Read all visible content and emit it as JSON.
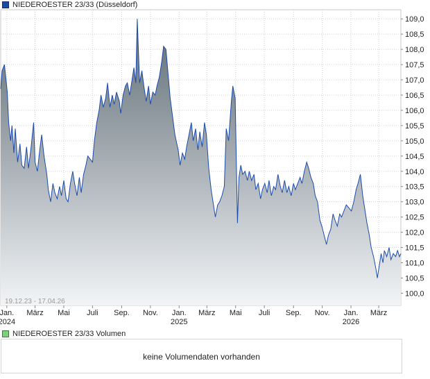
{
  "legend": {
    "price_label": "NIEDEROESTER 23/33 (Düsseldorf)",
    "volume_label": "NIEDEROESTER 23/33 Volumen"
  },
  "date_range": "19.12.23 - 17.04.26",
  "volume_message": "keine Volumendaten vorhanden",
  "colors": {
    "line": "#1a4bb0",
    "fill_top": "#5e6b74",
    "fill_bottom": "#f2f4f6",
    "grid": "#d0d0d0"
  },
  "chart_data": {
    "type": "area",
    "series": [
      {
        "name": "NIEDEROESTER 23/33 (Düsseldorf)"
      }
    ],
    "ylim": [
      99.6,
      109.3
    ],
    "yticks": [
      "100,0",
      "100,5",
      "101,0",
      "101,5",
      "102,0",
      "102,5",
      "103,0",
      "103,5",
      "104,0",
      "104,5",
      "105,0",
      "105,5",
      "106,0",
      "106,5",
      "107,0",
      "107,5",
      "108,0",
      "108,5",
      "109,0"
    ],
    "xlim": [
      "2023-12-19",
      "2026-04-17"
    ],
    "xticks": [
      {
        "date": "2024-01-01",
        "label": "Jan.",
        "sub": "2024"
      },
      {
        "date": "2024-03-01",
        "label": "März",
        "sub": ""
      },
      {
        "date": "2024-05-01",
        "label": "Mai",
        "sub": ""
      },
      {
        "date": "2024-07-01",
        "label": "Juli",
        "sub": ""
      },
      {
        "date": "2024-09-01",
        "label": "Sep.",
        "sub": ""
      },
      {
        "date": "2024-11-01",
        "label": "Nov.",
        "sub": ""
      },
      {
        "date": "2025-01-01",
        "label": "Jan.",
        "sub": "2025"
      },
      {
        "date": "2025-03-01",
        "label": "März",
        "sub": ""
      },
      {
        "date": "2025-05-01",
        "label": "Mai",
        "sub": ""
      },
      {
        "date": "2025-07-01",
        "label": "Juli",
        "sub": ""
      },
      {
        "date": "2025-09-01",
        "label": "Sep.",
        "sub": ""
      },
      {
        "date": "2025-11-01",
        "label": "Nov.",
        "sub": ""
      },
      {
        "date": "2026-01-01",
        "label": "Jan.",
        "sub": "2026"
      },
      {
        "date": "2026-03-01",
        "label": "März",
        "sub": ""
      }
    ],
    "points": [
      [
        "2023-12-19",
        106.7
      ],
      [
        "2023-12-22",
        107.3
      ],
      [
        "2023-12-27",
        107.5
      ],
      [
        "2024-01-02",
        106.6
      ],
      [
        "2024-01-05",
        105.6
      ],
      [
        "2024-01-09",
        105.0
      ],
      [
        "2024-01-12",
        105.5
      ],
      [
        "2024-01-16",
        104.6
      ],
      [
        "2024-01-19",
        105.4
      ],
      [
        "2024-01-24",
        104.3
      ],
      [
        "2024-01-29",
        104.9
      ],
      [
        "2024-02-02",
        104.2
      ],
      [
        "2024-02-07",
        104.1
      ],
      [
        "2024-02-12",
        104.8
      ],
      [
        "2024-02-16",
        104.1
      ],
      [
        "2024-02-21",
        104.7
      ],
      [
        "2024-02-27",
        105.6
      ],
      [
        "2024-03-01",
        104.3
      ],
      [
        "2024-03-06",
        104.0
      ],
      [
        "2024-03-11",
        104.7
      ],
      [
        "2024-03-15",
        105.2
      ],
      [
        "2024-03-20",
        104.5
      ],
      [
        "2024-03-26",
        103.9
      ],
      [
        "2024-03-29",
        103.4
      ],
      [
        "2024-04-03",
        103.0
      ],
      [
        "2024-04-08",
        103.6
      ],
      [
        "2024-04-12",
        103.3
      ],
      [
        "2024-04-17",
        103.1
      ],
      [
        "2024-04-22",
        103.5
      ],
      [
        "2024-04-26",
        103.2
      ],
      [
        "2024-05-01",
        103.7
      ],
      [
        "2024-05-06",
        103.1
      ],
      [
        "2024-05-10",
        103.0
      ],
      [
        "2024-05-15",
        103.6
      ],
      [
        "2024-05-20",
        104.0
      ],
      [
        "2024-05-24",
        103.6
      ],
      [
        "2024-05-29",
        103.2
      ],
      [
        "2024-06-03",
        103.8
      ],
      [
        "2024-06-07",
        103.3
      ],
      [
        "2024-06-12",
        103.9
      ],
      [
        "2024-06-17",
        104.2
      ],
      [
        "2024-06-21",
        104.5
      ],
      [
        "2024-06-26",
        104.4
      ],
      [
        "2024-07-01",
        104.3
      ],
      [
        "2024-07-05",
        105.0
      ],
      [
        "2024-07-10",
        105.6
      ],
      [
        "2024-07-15",
        106.0
      ],
      [
        "2024-07-19",
        106.5
      ],
      [
        "2024-07-24",
        106.1
      ],
      [
        "2024-07-29",
        106.4
      ],
      [
        "2024-08-02",
        106.9
      ],
      [
        "2024-08-07",
        106.1
      ],
      [
        "2024-08-12",
        106.5
      ],
      [
        "2024-08-16",
        106.2
      ],
      [
        "2024-08-21",
        106.6
      ],
      [
        "2024-08-27",
        106.3
      ],
      [
        "2024-08-30",
        105.9
      ],
      [
        "2024-09-04",
        106.5
      ],
      [
        "2024-09-09",
        106.8
      ],
      [
        "2024-09-13",
        106.9
      ],
      [
        "2024-09-18",
        106.5
      ],
      [
        "2024-09-23",
        107.0
      ],
      [
        "2024-09-27",
        107.4
      ],
      [
        "2024-10-01",
        106.9
      ],
      [
        "2024-10-04",
        109.0
      ],
      [
        "2024-10-09",
        106.9
      ],
      [
        "2024-10-14",
        107.3
      ],
      [
        "2024-10-18",
        106.8
      ],
      [
        "2024-10-23",
        106.3
      ],
      [
        "2024-10-28",
        106.8
      ],
      [
        "2024-11-01",
        106.2
      ],
      [
        "2024-11-06",
        106.6
      ],
      [
        "2024-11-11",
        106.5
      ],
      [
        "2024-11-15",
        106.8
      ],
      [
        "2024-11-20",
        107.1
      ],
      [
        "2024-11-25",
        107.6
      ],
      [
        "2024-11-29",
        108.1
      ],
      [
        "2024-12-04",
        108.0
      ],
      [
        "2024-12-09",
        107.1
      ],
      [
        "2024-12-13",
        106.4
      ],
      [
        "2024-12-18",
        105.8
      ],
      [
        "2024-12-23",
        105.2
      ],
      [
        "2024-12-30",
        104.7
      ],
      [
        "2025-01-03",
        104.2
      ],
      [
        "2025-01-08",
        104.6
      ],
      [
        "2025-01-13",
        104.4
      ],
      [
        "2025-01-17",
        104.8
      ],
      [
        "2025-01-22",
        105.2
      ],
      [
        "2025-01-27",
        105.6
      ],
      [
        "2025-01-31",
        105.0
      ],
      [
        "2025-02-05",
        105.4
      ],
      [
        "2025-02-10",
        104.7
      ],
      [
        "2025-02-14",
        105.3
      ],
      [
        "2025-02-19",
        104.8
      ],
      [
        "2025-02-24",
        105.6
      ],
      [
        "2025-02-28",
        105.2
      ],
      [
        "2025-03-05",
        104.1
      ],
      [
        "2025-03-10",
        103.4
      ],
      [
        "2025-03-14",
        103.0
      ],
      [
        "2025-03-19",
        102.5
      ],
      [
        "2025-03-24",
        102.9
      ],
      [
        "2025-03-28",
        103.0
      ],
      [
        "2025-04-02",
        103.2
      ],
      [
        "2025-04-07",
        103.5
      ],
      [
        "2025-04-11",
        105.4
      ],
      [
        "2025-04-16",
        105.0
      ],
      [
        "2025-04-22",
        106.3
      ],
      [
        "2025-04-25",
        106.8
      ],
      [
        "2025-04-30",
        106.4
      ],
      [
        "2025-05-05",
        102.3
      ],
      [
        "2025-05-08",
        103.8
      ],
      [
        "2025-05-12",
        104.2
      ],
      [
        "2025-05-16",
        103.9
      ],
      [
        "2025-05-21",
        104.0
      ],
      [
        "2025-05-26",
        103.7
      ],
      [
        "2025-05-30",
        104.0
      ],
      [
        "2025-06-04",
        103.7
      ],
      [
        "2025-06-09",
        103.9
      ],
      [
        "2025-06-13",
        103.4
      ],
      [
        "2025-06-18",
        103.6
      ],
      [
        "2025-06-23",
        103.1
      ],
      [
        "2025-06-27",
        103.4
      ],
      [
        "2025-07-02",
        103.6
      ],
      [
        "2025-07-07",
        103.3
      ],
      [
        "2025-07-11",
        103.7
      ],
      [
        "2025-07-16",
        103.2
      ],
      [
        "2025-07-21",
        103.5
      ],
      [
        "2025-07-25",
        103.4
      ],
      [
        "2025-07-30",
        103.9
      ],
      [
        "2025-08-04",
        103.5
      ],
      [
        "2025-08-08",
        103.3
      ],
      [
        "2025-08-13",
        103.7
      ],
      [
        "2025-08-18",
        103.3
      ],
      [
        "2025-08-22",
        103.5
      ],
      [
        "2025-08-27",
        103.2
      ],
      [
        "2025-09-01",
        103.6
      ],
      [
        "2025-09-05",
        103.4
      ],
      [
        "2025-09-10",
        103.6
      ],
      [
        "2025-09-15",
        103.8
      ],
      [
        "2025-09-19",
        103.6
      ],
      [
        "2025-09-24",
        104.0
      ],
      [
        "2025-09-29",
        104.3
      ],
      [
        "2025-10-03",
        104.1
      ],
      [
        "2025-10-08",
        103.8
      ],
      [
        "2025-10-13",
        103.6
      ],
      [
        "2025-10-17",
        103.2
      ],
      [
        "2025-10-22",
        103.0
      ],
      [
        "2025-10-27",
        102.4
      ],
      [
        "2025-10-31",
        102.2
      ],
      [
        "2025-11-05",
        101.9
      ],
      [
        "2025-11-10",
        101.6
      ],
      [
        "2025-11-14",
        101.9
      ],
      [
        "2025-11-19",
        102.1
      ],
      [
        "2025-11-24",
        102.6
      ],
      [
        "2025-11-28",
        102.4
      ],
      [
        "2025-12-03",
        102.2
      ],
      [
        "2025-12-08",
        102.6
      ],
      [
        "2025-12-12",
        102.5
      ],
      [
        "2025-12-17",
        102.7
      ],
      [
        "2025-12-22",
        102.9
      ],
      [
        "2026-01-02",
        102.7
      ],
      [
        "2026-01-07",
        103.0
      ],
      [
        "2026-01-12",
        103.4
      ],
      [
        "2026-01-16",
        103.6
      ],
      [
        "2026-01-21",
        103.9
      ],
      [
        "2026-01-26",
        103.2
      ],
      [
        "2026-01-30",
        102.8
      ],
      [
        "2026-02-04",
        102.3
      ],
      [
        "2026-02-09",
        101.9
      ],
      [
        "2026-02-13",
        101.5
      ],
      [
        "2026-02-18",
        101.2
      ],
      [
        "2026-02-23",
        100.8
      ],
      [
        "2026-02-26",
        100.5
      ],
      [
        "2026-03-03",
        101.0
      ],
      [
        "2026-03-06",
        101.3
      ],
      [
        "2026-03-10",
        101.0
      ],
      [
        "2026-03-13",
        101.4
      ],
      [
        "2026-03-18",
        101.2
      ],
      [
        "2026-03-23",
        101.5
      ],
      [
        "2026-03-27",
        101.1
      ],
      [
        "2026-04-01",
        101.3
      ],
      [
        "2026-04-06",
        101.2
      ],
      [
        "2026-04-10",
        101.4
      ],
      [
        "2026-04-14",
        101.2
      ],
      [
        "2026-04-17",
        101.3
      ]
    ],
    "grid": true
  }
}
